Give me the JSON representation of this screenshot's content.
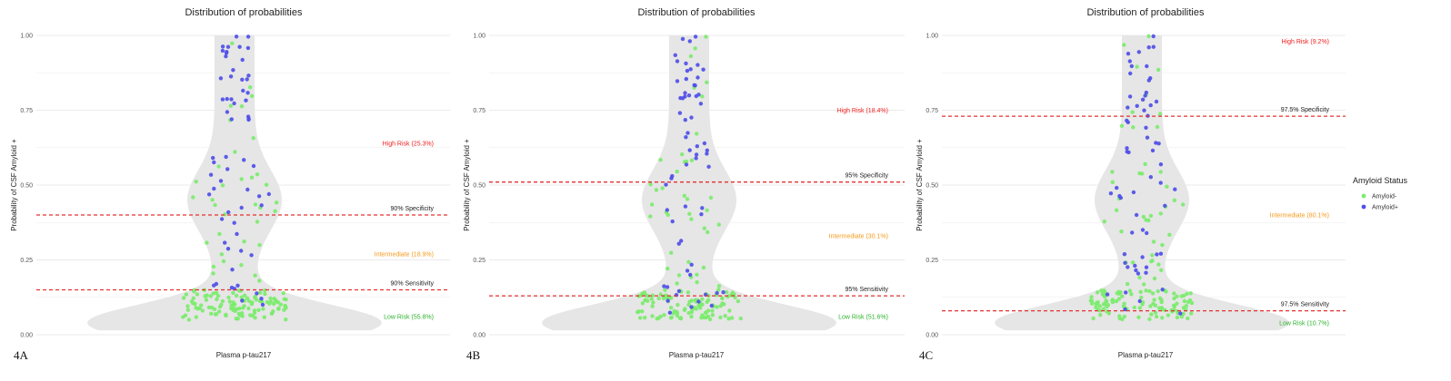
{
  "legend": {
    "title": "Amyloid Status",
    "items": [
      {
        "label": "Amyloid-",
        "color": "#7CEB6E"
      },
      {
        "label": "Amyloid+",
        "color": "#4F4FE8"
      }
    ]
  },
  "colors": {
    "threshold_line": "#E53030",
    "high_risk": "#F02020",
    "intermediate": "#F59A1A",
    "low_risk": "#2DB32D",
    "violin": "#E6E6E6",
    "grid": "#EBEBEB"
  },
  "chart_data": [
    {
      "type": "scatter",
      "panel_label": "4A",
      "title": "Distribution of probabilities",
      "xlabel": "Plasma p-tau217",
      "ylabel": "Probability of CSF Amyloid +",
      "ylim": [
        0,
        1
      ],
      "yticks": [
        "0.00",
        "0.25",
        "0.50",
        "0.75",
        "1.00"
      ],
      "grid": true,
      "thresholds": [
        {
          "label": "90% Specificity",
          "value": 0.4
        },
        {
          "label": "90% Sensitivity",
          "value": 0.15
        }
      ],
      "zones": [
        {
          "label": "High Risk (25.3%)",
          "value": 0.64,
          "kind": "high"
        },
        {
          "label": "Intermediate (18.9%)",
          "value": 0.27,
          "kind": "intermediate"
        },
        {
          "label": "Low Risk (55.8%)",
          "value": 0.06,
          "kind": "low"
        }
      ],
      "seed": 11,
      "series": [
        {
          "name": "Amyloid-",
          "count": 150
        },
        {
          "name": "Amyloid+",
          "count": 62
        }
      ]
    },
    {
      "type": "scatter",
      "panel_label": "4B",
      "title": "Distribution of probabilities",
      "xlabel": "Plasma p-tau217",
      "ylabel": "Probability of CSF Amyloid +",
      "ylim": [
        0,
        1
      ],
      "yticks": [
        "0.00",
        "0.25",
        "0.50",
        "0.75",
        "1.00"
      ],
      "grid": true,
      "thresholds": [
        {
          "label": "95% Specificity",
          "value": 0.51
        },
        {
          "label": "95% Sensitivity",
          "value": 0.13
        }
      ],
      "zones": [
        {
          "label": "High Risk (18.4%)",
          "value": 0.75,
          "kind": "high"
        },
        {
          "label": "Intermediate (30.1%)",
          "value": 0.33,
          "kind": "intermediate"
        },
        {
          "label": "Low Risk (51.6%)",
          "value": 0.06,
          "kind": "low"
        }
      ],
      "seed": 23,
      "series": [
        {
          "name": "Amyloid-",
          "count": 150
        },
        {
          "name": "Amyloid+",
          "count": 62
        }
      ]
    },
    {
      "type": "scatter",
      "panel_label": "4C",
      "title": "Distribution of probabilities",
      "xlabel": "Plasma p-tau217",
      "ylabel": "Probability of CSF Amyloid +",
      "ylim": [
        0,
        1
      ],
      "yticks": [
        "0.00",
        "0.25",
        "0.50",
        "0.75",
        "1.00"
      ],
      "grid": true,
      "thresholds": [
        {
          "label": "97.5% Specificity",
          "value": 0.73
        },
        {
          "label": "97.5% Sensitivity",
          "value": 0.08
        }
      ],
      "zones": [
        {
          "label": "High Risk (9.2%)",
          "value": 0.98,
          "kind": "high"
        },
        {
          "label": "Intermediate (80.1%)",
          "value": 0.4,
          "kind": "intermediate"
        },
        {
          "label": "Low Risk (10.7%)",
          "value": 0.04,
          "kind": "low"
        }
      ],
      "seed": 37,
      "series": [
        {
          "name": "Amyloid-",
          "count": 150
        },
        {
          "name": "Amyloid+",
          "count": 62
        }
      ]
    }
  ]
}
